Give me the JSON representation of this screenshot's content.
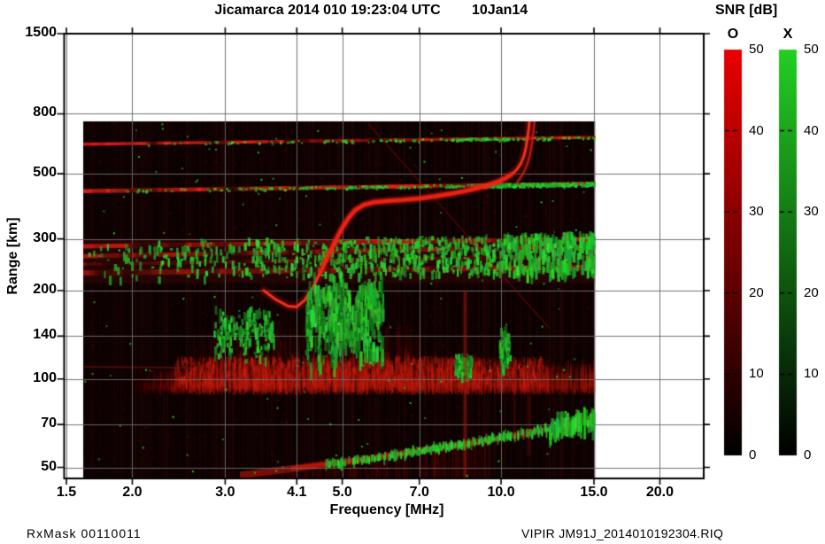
{
  "header": {
    "title": "Jicamarca 2014 010 19:23:04 UTC",
    "date": "10Jan14"
  },
  "footer": {
    "left": "RxMask 00110011",
    "right": "VIPIR  JM91J_2014010192304.RIQ"
  },
  "colorbar": {
    "title": "SNR [dB]",
    "o_label": "O",
    "x_label": "X",
    "ticks": [
      "50",
      "40",
      "30",
      "20",
      "10",
      "0"
    ],
    "tick_values": [
      50,
      40,
      30,
      20,
      10,
      0
    ],
    "o_top_color": "#ea0000",
    "x_top_color": "#22d022",
    "bottom_color": "#000000",
    "range": [
      0,
      50
    ]
  },
  "chart_data": {
    "type": "heatmap",
    "title": "Jicamarca 2014 010 19:23:04 UTC",
    "subtitle": "10Jan14",
    "xlabel": "Frequency [MHz]",
    "ylabel": "Range [km]",
    "x_scale": "log",
    "y_scale": "log",
    "x_ticks": [
      {
        "v": 1.5,
        "label": "1.5"
      },
      {
        "v": 2.0,
        "label": "2.0"
      },
      {
        "v": 3.0,
        "label": "3.0"
      },
      {
        "v": 4.1,
        "label": "4.1"
      },
      {
        "v": 5.0,
        "label": "5.0"
      },
      {
        "v": 7.0,
        "label": "7.0"
      },
      {
        "v": 10.0,
        "label": "10.0"
      },
      {
        "v": 15.0,
        "label": "15.0"
      },
      {
        "v": 20.0,
        "label": "20.0"
      }
    ],
    "y_ticks": [
      {
        "v": 1500,
        "label": "1500"
      },
      {
        "v": 800,
        "label": "800"
      },
      {
        "v": 500,
        "label": "500"
      },
      {
        "v": 300,
        "label": "300"
      },
      {
        "v": 200,
        "label": "200"
      },
      {
        "v": 140,
        "label": "140"
      },
      {
        "v": 100,
        "label": "100"
      },
      {
        "v": 70,
        "label": "70"
      },
      {
        "v": 50,
        "label": "50"
      }
    ],
    "x_range": [
      1.485,
      24.2
    ],
    "y_range": [
      46,
      1500
    ],
    "data_extent": {
      "freq_mhz": [
        1.61,
        15.05
      ],
      "range_km": [
        46,
        753
      ]
    },
    "grid": true,
    "features": {
      "background": {
        "base_color": [
          12,
          2,
          2
        ],
        "noise_color": [
          150,
          25,
          15
        ]
      },
      "horizontal_lines": [
        {
          "alt": [
            630,
            665
          ],
          "width": 3.5,
          "color": [
            215,
            24,
            15
          ],
          "green_density": 0.5
        },
        {
          "alt": [
            436,
            463
          ],
          "width": 4.5,
          "color": [
            230,
            30,
            18
          ],
          "green_density": 1.0
        }
      ],
      "echo_band": {
        "alt_range": [
          212,
          300
        ],
        "fill_color": [
          55,
          8,
          5
        ],
        "streaks": [
          {
            "alt": [
              283,
              300
            ],
            "width": 5,
            "color": [
              200,
              26,
              16
            ]
          },
          {
            "alt": [
              262,
              283
            ],
            "width": 5,
            "color": [
              175,
              22,
              14
            ]
          },
          {
            "alt": [
              246,
              262
            ],
            "width": 4,
            "color": [
              120,
              16,
              10
            ]
          },
          {
            "alt": [
              230,
              240
            ],
            "width": 6,
            "color": [
              150,
              20,
              12
            ]
          }
        ],
        "green_count": 1000
      },
      "o_trace": [
        [
          3.55,
          200
        ],
        [
          3.75,
          186
        ],
        [
          3.95,
          177
        ],
        [
          4.1,
          176
        ],
        [
          4.25,
          186
        ],
        [
          4.4,
          205
        ],
        [
          4.55,
          232
        ],
        [
          4.7,
          262
        ],
        [
          4.85,
          295
        ],
        [
          5.0,
          327
        ],
        [
          5.15,
          355
        ],
        [
          5.3,
          377
        ],
        [
          5.5,
          392
        ],
        [
          5.75,
          400
        ],
        [
          6.1,
          404
        ],
        [
          6.5,
          407
        ],
        [
          7.0,
          412
        ],
        [
          7.5,
          419
        ],
        [
          8.0,
          427
        ],
        [
          8.5,
          436
        ],
        [
          9.0,
          446
        ],
        [
          9.4,
          456
        ],
        [
          9.8,
          468
        ],
        [
          10.15,
          481
        ],
        [
          10.45,
          497
        ],
        [
          10.7,
          516
        ],
        [
          10.9,
          542
        ],
        [
          11.05,
          575
        ],
        [
          11.15,
          615
        ],
        [
          11.22,
          660
        ],
        [
          11.28,
          710
        ],
        [
          11.32,
          755
        ]
      ],
      "x_trace": [
        [
          10.75,
          470
        ],
        [
          11.0,
          500
        ],
        [
          11.2,
          535
        ],
        [
          11.35,
          580
        ],
        [
          11.45,
          635
        ],
        [
          11.52,
          695
        ],
        [
          11.57,
          750
        ]
      ],
      "critical_frequency_o_mhz": 11.3,
      "e_layer": {
        "f_range": [
          1.8,
          15.0
        ],
        "alt_core": [
          88,
          125
        ],
        "alt_top": 170,
        "strength_f": [
          2.8,
          9.0
        ]
      },
      "green_clusters": [
        {
          "f": [
            2.85,
            3.7
          ],
          "alt": [
            112,
            175
          ],
          "count": 170
        },
        {
          "f": [
            4.25,
            5.95
          ],
          "alt": [
            103,
            218
          ],
          "count": 540
        },
        {
          "f": [
            8.15,
            8.75
          ],
          "alt": [
            98,
            122
          ],
          "count": 90
        },
        {
          "f": [
            9.9,
            10.35
          ],
          "alt": [
            100,
            150
          ],
          "count": 60
        }
      ],
      "bottom_band": {
        "points": [
          [
            3.2,
            47
          ],
          [
            4.0,
            49.5
          ],
          [
            5.0,
            52
          ],
          [
            6.0,
            54.5
          ],
          [
            7.0,
            57
          ],
          [
            8.0,
            59
          ],
          [
            9.0,
            61
          ],
          [
            10.0,
            63
          ],
          [
            11.5,
            66
          ],
          [
            13.0,
            69
          ],
          [
            15.0,
            73
          ]
        ],
        "width": 8,
        "green_from": 4.6,
        "green_heavy_from": 12.3,
        "green_count": 430
      },
      "v_streaks": [
        {
          "f": 8.55,
          "alt": [
            46,
            200
          ],
          "width": 4,
          "alpha": 0.5
        },
        {
          "f": 10.6,
          "alt": [
            60,
            112
          ],
          "width": 3,
          "alpha": 0.22
        },
        {
          "f": 11.3,
          "alt": [
            55,
            108
          ],
          "width": 5,
          "alpha": 0.18
        }
      ],
      "diagonal": {
        "from": [
          5.6,
          740
        ],
        "to": [
          12.3,
          150
        ],
        "alpha": 0.3
      }
    }
  }
}
